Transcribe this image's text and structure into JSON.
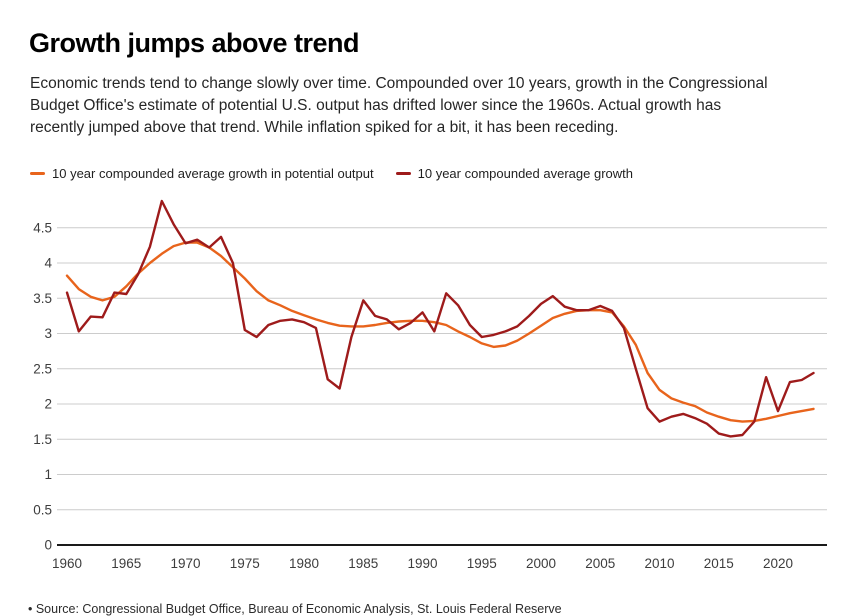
{
  "header": {
    "title": "Growth jumps above trend",
    "description": "Economic trends tend to change slowly over time. Compounded over 10 years, growth in the Congressional Budget Office's estimate of potential U.S. output has drifted lower since the 1960s. Actual growth has recently jumped above that trend. While inflation spiked for a bit, it has been receding."
  },
  "legend": [
    {
      "label": "10 year compounded average growth in potential output",
      "color": "#E8641C"
    },
    {
      "label": "10 year compounded average growth",
      "color": "#9E1B1B"
    }
  ],
  "chart_data": {
    "type": "line",
    "x": [
      1960,
      1961,
      1962,
      1963,
      1964,
      1965,
      1966,
      1967,
      1968,
      1969,
      1970,
      1971,
      1972,
      1973,
      1974,
      1975,
      1976,
      1977,
      1978,
      1979,
      1980,
      1981,
      1982,
      1983,
      1984,
      1985,
      1986,
      1987,
      1988,
      1989,
      1990,
      1991,
      1992,
      1993,
      1994,
      1995,
      1996,
      1997,
      1998,
      1999,
      2000,
      2001,
      2002,
      2003,
      2004,
      2005,
      2006,
      2007,
      2008,
      2009,
      2010,
      2011,
      2012,
      2013,
      2014,
      2015,
      2016,
      2017,
      2018,
      2019,
      2020,
      2021,
      2022,
      2023
    ],
    "series": [
      {
        "name": "10 year compounded average growth in potential output",
        "color": "#E8641C",
        "values": [
          3.82,
          3.63,
          3.52,
          3.47,
          3.52,
          3.67,
          3.85,
          4.0,
          4.13,
          4.24,
          4.29,
          4.29,
          4.22,
          4.1,
          3.94,
          3.78,
          3.6,
          3.47,
          3.4,
          3.32,
          3.26,
          3.2,
          3.15,
          3.11,
          3.1,
          3.1,
          3.12,
          3.15,
          3.17,
          3.18,
          3.18,
          3.16,
          3.12,
          3.03,
          2.95,
          2.86,
          2.81,
          2.83,
          2.9,
          3.0,
          3.11,
          3.22,
          3.28,
          3.32,
          3.33,
          3.33,
          3.3,
          3.1,
          2.84,
          2.44,
          2.2,
          2.08,
          2.02,
          1.97,
          1.88,
          1.82,
          1.77,
          1.75,
          1.76,
          1.79,
          1.83,
          1.87,
          1.9,
          1.93
        ]
      },
      {
        "name": "10 year compounded average growth",
        "color": "#9E1B1B",
        "values": [
          3.58,
          3.03,
          3.24,
          3.23,
          3.58,
          3.56,
          3.84,
          4.23,
          4.88,
          4.55,
          4.28,
          4.33,
          4.22,
          4.37,
          4.0,
          3.05,
          2.95,
          3.12,
          3.18,
          3.2,
          3.16,
          3.08,
          2.35,
          2.22,
          2.95,
          3.47,
          3.25,
          3.2,
          3.06,
          3.15,
          3.3,
          3.03,
          3.57,
          3.4,
          3.12,
          2.95,
          2.98,
          3.03,
          3.1,
          3.25,
          3.42,
          3.53,
          3.38,
          3.33,
          3.33,
          3.39,
          3.32,
          3.08,
          2.5,
          1.94,
          1.75,
          1.82,
          1.86,
          1.8,
          1.72,
          1.58,
          1.54,
          1.56,
          1.75,
          2.38,
          1.9,
          2.31,
          2.34,
          2.44
        ]
      }
    ],
    "title": "Growth jumps above trend",
    "xlabel": "",
    "ylabel": "",
    "ylim": [
      0,
      5
    ],
    "yticks": [
      "0",
      "0.5",
      "1",
      "1.5",
      "2",
      "2.5",
      "3",
      "3.5",
      "4",
      "4.5"
    ],
    "ytick_values": [
      0,
      0.5,
      1,
      1.5,
      2,
      2.5,
      3,
      3.5,
      4,
      4.5
    ],
    "xticks": [
      "1960",
      "1965",
      "1970",
      "1975",
      "1980",
      "1985",
      "1990",
      "1995",
      "2000",
      "2005",
      "2010",
      "2015",
      "2020"
    ],
    "xtick_values": [
      1960,
      1965,
      1970,
      1975,
      1980,
      1985,
      1990,
      1995,
      2000,
      2005,
      2010,
      2015,
      2020
    ],
    "grid": "horizontal",
    "gridline_color": "#cccccc",
    "axis_line_color": "#1a1a1a",
    "tick_label_color": "#3d3d3d",
    "legend_position": "top-left"
  },
  "footer": {
    "source": "• Source: Congressional Budget Office, Bureau of Economic Analysis, St. Louis Federal Reserve"
  }
}
